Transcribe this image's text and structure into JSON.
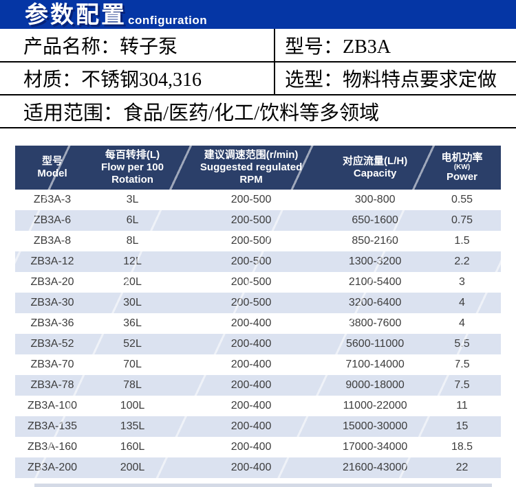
{
  "banner": {
    "title": "参数配置",
    "subtitle": "configuration",
    "bg_color": "#0536a5"
  },
  "info": {
    "product_name": "产品名称：转子泵",
    "model": "型号：ZB3A",
    "material": "材质：不锈钢304,316",
    "selection": "选型：物料特点要求定做",
    "scope": "适用范围：食品/医药/化工/饮料等多领域"
  },
  "table": {
    "header_bg": "#2b3f69",
    "alt_row_color": "#dbe2f0",
    "text_color": "#3c3c3c",
    "columns": [
      {
        "lines": [
          "型号",
          "Model"
        ]
      },
      {
        "lines": [
          "每百转排(L)",
          "Flow per 100",
          "Rotation"
        ]
      },
      {
        "lines": [
          "建议调速范围(r/min)",
          "Suggested regulated",
          "RPM"
        ]
      },
      {
        "lines": [
          "对应流量(L/H)",
          "Capacity"
        ]
      },
      {
        "lines": [
          "电机功率",
          "(KW)",
          "Power"
        ]
      }
    ],
    "rows": [
      [
        "ZB3A-3",
        "3L",
        "200-500",
        "300-800",
        "0.55"
      ],
      [
        "ZB3A-6",
        "6L",
        "200-500",
        "650-1600",
        "0.75"
      ],
      [
        "ZB3A-8",
        "8L",
        "200-500",
        "850-2160",
        "1.5"
      ],
      [
        "ZB3A-12",
        "12L",
        "200-500",
        "1300-3200",
        "2.2"
      ],
      [
        "ZB3A-20",
        "20L",
        "200-500",
        "2100-5400",
        "3"
      ],
      [
        "ZB3A-30",
        "30L",
        "200-500",
        "3200-6400",
        "4"
      ],
      [
        "ZB3A-36",
        "36L",
        "200-400",
        "3800-7600",
        "4"
      ],
      [
        "ZB3A-52",
        "52L",
        "200-400",
        "5600-11000",
        "5.5"
      ],
      [
        "ZB3A-70",
        "70L",
        "200-400",
        "7100-14000",
        "7.5"
      ],
      [
        "ZB3A-78",
        "78L",
        "200-400",
        "9000-18000",
        "7.5"
      ],
      [
        "ZB3A-100",
        "100L",
        "200-400",
        "11000-22000",
        "11"
      ],
      [
        "ZB3A-135",
        "135L",
        "200-400",
        "15000-30000",
        "15"
      ],
      [
        "ZB3A-160",
        "160L",
        "200-400",
        "17000-34000",
        "18.5"
      ],
      [
        "ZB3A-200",
        "200L",
        "200-400",
        "21600-43000",
        "22"
      ]
    ]
  }
}
